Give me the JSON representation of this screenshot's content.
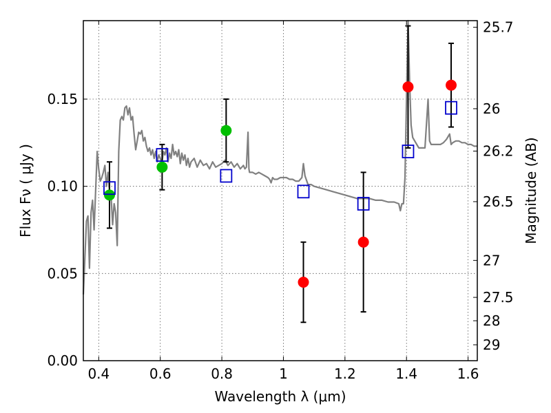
{
  "chart_data": {
    "type": "scatter",
    "xlabel": "Wavelength  λ (μm)",
    "ylabel": "Flux  Fν  ( μJy )",
    "y2label": "Magnitude (AB)",
    "xlim": [
      0.35,
      1.63
    ],
    "ylim": [
      0.0,
      0.195
    ],
    "grid": true,
    "x_ticks": [
      0.4,
      0.6,
      0.8,
      1.0,
      1.2,
      1.4,
      1.6
    ],
    "x_tick_labels": [
      "0.4",
      "0.6",
      "0.8",
      "1",
      "1.2",
      "1.4",
      "1.6"
    ],
    "y_ticks": [
      0.0,
      0.05,
      0.1,
      0.15
    ],
    "y_tick_labels": [
      "0.00",
      "0.05",
      "0.10",
      "0.15"
    ],
    "mag_ticks": [
      {
        "label": "25.7",
        "flux": 0.1912
      },
      {
        "label": "26",
        "flux": 0.1445
      },
      {
        "label": "26.2",
        "flux": 0.1202
      },
      {
        "label": "26.5",
        "flux": 0.0912
      },
      {
        "label": "27",
        "flux": 0.0575
      },
      {
        "label": "27.5",
        "flux": 0.0363
      },
      {
        "label": "28",
        "flux": 0.0229
      },
      {
        "label": "29",
        "flux": 0.0091
      }
    ],
    "colors": {
      "model": "#808080",
      "green": "#00bf00",
      "red": "#ff0000",
      "square": "#0000cc",
      "errorbar": "#000000",
      "grid": "#555555"
    },
    "series": [
      {
        "marker": "circle",
        "color": "green",
        "points": [
          {
            "x": 0.435,
            "y": 0.095,
            "err": 0.019
          },
          {
            "x": 0.606,
            "y": 0.111,
            "err": 0.013
          },
          {
            "x": 0.814,
            "y": 0.132,
            "err": 0.018
          }
        ]
      },
      {
        "marker": "circle",
        "color": "red",
        "points": [
          {
            "x": 1.065,
            "y": 0.045,
            "err": 0.023
          },
          {
            "x": 1.26,
            "y": 0.068,
            "err": 0.04
          },
          {
            "x": 1.405,
            "y": 0.157,
            "err": 0.035
          },
          {
            "x": 1.545,
            "y": 0.158,
            "err": 0.024
          }
        ]
      },
      {
        "marker": "open-square",
        "color": "square",
        "points": [
          {
            "x": 0.435,
            "y": 0.099
          },
          {
            "x": 0.606,
            "y": 0.118
          },
          {
            "x": 0.814,
            "y": 0.106
          },
          {
            "x": 1.065,
            "y": 0.097
          },
          {
            "x": 1.26,
            "y": 0.09
          },
          {
            "x": 1.405,
            "y": 0.12
          },
          {
            "x": 1.545,
            "y": 0.145
          }
        ]
      }
    ],
    "model_spectrum": [
      [
        0.35,
        0.038
      ],
      [
        0.36,
        0.08
      ],
      [
        0.365,
        0.083
      ],
      [
        0.37,
        0.053
      ],
      [
        0.375,
        0.085
      ],
      [
        0.38,
        0.092
      ],
      [
        0.385,
        0.075
      ],
      [
        0.39,
        0.098
      ],
      [
        0.395,
        0.12
      ],
      [
        0.4,
        0.11
      ],
      [
        0.405,
        0.103
      ],
      [
        0.41,
        0.105
      ],
      [
        0.415,
        0.108
      ],
      [
        0.42,
        0.112
      ],
      [
        0.425,
        0.1
      ],
      [
        0.43,
        0.108
      ],
      [
        0.435,
        0.097
      ],
      [
        0.44,
        0.095
      ],
      [
        0.445,
        0.078
      ],
      [
        0.45,
        0.09
      ],
      [
        0.455,
        0.085
      ],
      [
        0.46,
        0.066
      ],
      [
        0.465,
        0.12
      ],
      [
        0.47,
        0.138
      ],
      [
        0.475,
        0.14
      ],
      [
        0.48,
        0.138
      ],
      [
        0.485,
        0.145
      ],
      [
        0.49,
        0.146
      ],
      [
        0.495,
        0.141
      ],
      [
        0.5,
        0.145
      ],
      [
        0.505,
        0.138
      ],
      [
        0.51,
        0.14
      ],
      [
        0.515,
        0.13
      ],
      [
        0.52,
        0.121
      ],
      [
        0.525,
        0.126
      ],
      [
        0.53,
        0.131
      ],
      [
        0.535,
        0.13
      ],
      [
        0.54,
        0.132
      ],
      [
        0.545,
        0.126
      ],
      [
        0.55,
        0.128
      ],
      [
        0.555,
        0.123
      ],
      [
        0.56,
        0.12
      ],
      [
        0.565,
        0.122
      ],
      [
        0.57,
        0.118
      ],
      [
        0.575,
        0.121
      ],
      [
        0.58,
        0.116
      ],
      [
        0.585,
        0.12
      ],
      [
        0.59,
        0.114
      ],
      [
        0.595,
        0.118
      ],
      [
        0.6,
        0.116
      ],
      [
        0.605,
        0.113
      ],
      [
        0.61,
        0.12
      ],
      [
        0.615,
        0.118
      ],
      [
        0.62,
        0.122
      ],
      [
        0.625,
        0.114
      ],
      [
        0.63,
        0.119
      ],
      [
        0.635,
        0.116
      ],
      [
        0.64,
        0.124
      ],
      [
        0.645,
        0.118
      ],
      [
        0.65,
        0.12
      ],
      [
        0.655,
        0.117
      ],
      [
        0.66,
        0.121
      ],
      [
        0.665,
        0.113
      ],
      [
        0.67,
        0.119
      ],
      [
        0.675,
        0.115
      ],
      [
        0.68,
        0.118
      ],
      [
        0.685,
        0.112
      ],
      [
        0.69,
        0.116
      ],
      [
        0.695,
        0.111
      ],
      [
        0.7,
        0.114
      ],
      [
        0.71,
        0.116
      ],
      [
        0.72,
        0.111
      ],
      [
        0.73,
        0.115
      ],
      [
        0.74,
        0.112
      ],
      [
        0.75,
        0.113
      ],
      [
        0.76,
        0.11
      ],
      [
        0.77,
        0.114
      ],
      [
        0.78,
        0.111
      ],
      [
        0.79,
        0.112
      ],
      [
        0.8,
        0.113
      ],
      [
        0.81,
        0.115
      ],
      [
        0.82,
        0.112
      ],
      [
        0.83,
        0.114
      ],
      [
        0.84,
        0.111
      ],
      [
        0.85,
        0.113
      ],
      [
        0.86,
        0.11
      ],
      [
        0.87,
        0.112
      ],
      [
        0.875,
        0.11
      ],
      [
        0.88,
        0.111
      ],
      [
        0.885,
        0.131
      ],
      [
        0.888,
        0.11
      ],
      [
        0.89,
        0.108
      ],
      [
        0.9,
        0.108
      ],
      [
        0.91,
        0.107
      ],
      [
        0.92,
        0.108
      ],
      [
        0.93,
        0.107
      ],
      [
        0.94,
        0.106
      ],
      [
        0.95,
        0.105
      ],
      [
        0.955,
        0.104
      ],
      [
        0.96,
        0.102
      ],
      [
        0.965,
        0.105
      ],
      [
        0.97,
        0.104
      ],
      [
        0.98,
        0.104
      ],
      [
        0.99,
        0.105
      ],
      [
        1.0,
        0.105
      ],
      [
        1.01,
        0.105
      ],
      [
        1.02,
        0.104
      ],
      [
        1.03,
        0.104
      ],
      [
        1.04,
        0.103
      ],
      [
        1.05,
        0.103
      ],
      [
        1.06,
        0.105
      ],
      [
        1.065,
        0.113
      ],
      [
        1.07,
        0.106
      ],
      [
        1.08,
        0.101
      ],
      [
        1.09,
        0.101
      ],
      [
        1.1,
        0.1
      ],
      [
        1.12,
        0.099
      ],
      [
        1.14,
        0.098
      ],
      [
        1.16,
        0.097
      ],
      [
        1.18,
        0.096
      ],
      [
        1.2,
        0.095
      ],
      [
        1.22,
        0.094
      ],
      [
        1.24,
        0.093
      ],
      [
        1.26,
        0.093
      ],
      [
        1.28,
        0.093
      ],
      [
        1.3,
        0.092
      ],
      [
        1.32,
        0.092
      ],
      [
        1.34,
        0.091
      ],
      [
        1.36,
        0.091
      ],
      [
        1.375,
        0.09
      ],
      [
        1.38,
        0.086
      ],
      [
        1.385,
        0.09
      ],
      [
        1.39,
        0.09
      ],
      [
        1.395,
        0.105
      ],
      [
        1.4,
        0.15
      ],
      [
        1.405,
        0.195
      ],
      [
        1.41,
        0.16
      ],
      [
        1.415,
        0.135
      ],
      [
        1.42,
        0.128
      ],
      [
        1.43,
        0.125
      ],
      [
        1.44,
        0.122
      ],
      [
        1.45,
        0.122
      ],
      [
        1.46,
        0.122
      ],
      [
        1.47,
        0.15
      ],
      [
        1.475,
        0.126
      ],
      [
        1.48,
        0.124
      ],
      [
        1.49,
        0.124
      ],
      [
        1.5,
        0.124
      ],
      [
        1.51,
        0.124
      ],
      [
        1.52,
        0.125
      ],
      [
        1.53,
        0.127
      ],
      [
        1.54,
        0.13
      ],
      [
        1.545,
        0.124
      ],
      [
        1.55,
        0.125
      ],
      [
        1.56,
        0.126
      ],
      [
        1.57,
        0.126
      ],
      [
        1.58,
        0.125
      ],
      [
        1.59,
        0.125
      ],
      [
        1.6,
        0.124
      ],
      [
        1.61,
        0.124
      ],
      [
        1.62,
        0.123
      ],
      [
        1.63,
        0.123
      ]
    ]
  }
}
